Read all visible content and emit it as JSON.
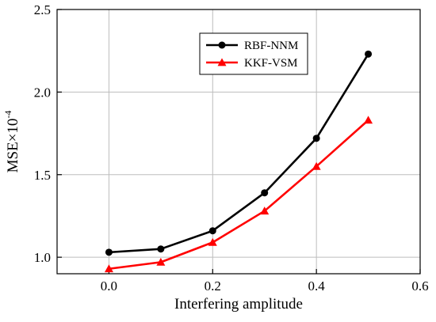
{
  "chart_data": {
    "type": "line",
    "xlabel": "Interfering amplitude",
    "ylabel": "MSE×10",
    "ylabel_exponent": "-4",
    "xlim": [
      -0.1,
      0.6
    ],
    "ylim": [
      0.9,
      2.5
    ],
    "x_ticks": [
      "0.0",
      "0.2",
      "0.4",
      "0.6"
    ],
    "y_ticks": [
      "1.0",
      "1.5",
      "2.0",
      "2.5"
    ],
    "grid": true,
    "legend_position": "top-right",
    "x": [
      0.0,
      0.1,
      0.2,
      0.3,
      0.4,
      0.5
    ],
    "series": [
      {
        "name": "RBF-NNM",
        "color": "#000000",
        "marker": "circle",
        "values": [
          1.03,
          1.05,
          1.16,
          1.39,
          1.72,
          2.23
        ]
      },
      {
        "name": "KKF-VSM",
        "color": "#ff0000",
        "marker": "triangle",
        "values": [
          0.93,
          0.97,
          1.09,
          1.28,
          1.55,
          1.83
        ]
      }
    ]
  }
}
